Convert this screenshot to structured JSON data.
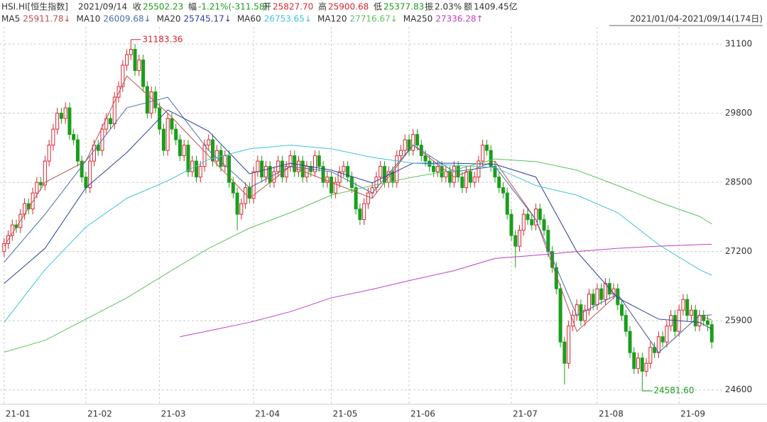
{
  "header": {
    "symbol": "HSI.HI[恒生指数]",
    "date": "2021/09/14",
    "items": [
      {
        "label": "收",
        "text": "25502.23",
        "color": "#1a9e1a"
      },
      {
        "label": "幅",
        "text": "-1.21%(-311.58)",
        "color": "#1a9e1a"
      },
      {
        "label": "开",
        "text": "25827.70",
        "color": "#d7262f"
      },
      {
        "label": "高",
        "text": "25900.68",
        "color": "#d7262f"
      },
      {
        "label": "低",
        "text": "25377.83",
        "color": "#1a9e1a"
      },
      {
        "label": "振",
        "text": "2.03%",
        "color": "#333333"
      },
      {
        "label": "额",
        "text": "1409.45亿",
        "color": "#333333"
      }
    ],
    "range": "2021/01/04-2021/09/14(174日)"
  },
  "chart_data": {
    "type": "candlestick",
    "up_color": "#d7262f",
    "down_color": "#1a9e1a",
    "grid": true,
    "ylim": [
      24330,
      31420
    ],
    "yticks": [
      24600,
      25900,
      27200,
      28500,
      29800,
      31100
    ],
    "xlim": [
      -1,
      174
    ],
    "xticks": [
      {
        "value": 0,
        "label": "21-01"
      },
      {
        "value": 20,
        "label": "21-02"
      },
      {
        "value": 38,
        "label": "21-03"
      },
      {
        "value": 61,
        "label": "21-04"
      },
      {
        "value": 80,
        "label": "21-05"
      },
      {
        "value": 99,
        "label": "21-06"
      },
      {
        "value": 124,
        "label": "21-07"
      },
      {
        "value": 145,
        "label": "21-08"
      },
      {
        "value": 165,
        "label": "21-09"
      }
    ],
    "open": [
      27200,
      27350,
      27500,
      27700,
      27650,
      27900,
      28100,
      28000,
      28300,
      28500,
      28450,
      28900,
      29200,
      29500,
      29800,
      29700,
      29900,
      29400,
      29300,
      28900,
      28600,
      28400,
      28900,
      29200,
      29100,
      29500,
      29700,
      29600,
      30100,
      30300,
      30700,
      30900,
      31000,
      30600,
      30800,
      30300,
      29800,
      30200,
      29900,
      29500,
      29100,
      29700,
      29500,
      29300,
      29000,
      29200,
      28700,
      28900,
      28600,
      28800,
      29200,
      29300,
      28900,
      29100,
      28800,
      29000,
      28500,
      28300,
      27900,
      28100,
      28400,
      28200,
      28700,
      28900,
      28600,
      28800,
      28500,
      28700,
      28900,
      28600,
      28800,
      29000,
      28700,
      28900,
      28600,
      28800,
      28700,
      29000,
      28800,
      28500,
      28600,
      28300,
      28500,
      28700,
      28800,
      28600,
      28400,
      28000,
      27800,
      28100,
      28300,
      28400,
      28600,
      28800,
      28500,
      28700,
      28500,
      29000,
      29100,
      29300,
      29100,
      29400,
      29200,
      29000,
      28900,
      28800,
      28700,
      28800,
      28600,
      28700,
      28500,
      28800,
      28600,
      28400,
      28700,
      28500,
      28600,
      28900,
      29200,
      29100,
      28800,
      28600,
      28400,
      28300,
      27900,
      27500,
      27300,
      27600,
      27900,
      27800,
      27700,
      28000,
      27800,
      27600,
      27200,
      26900,
      26500,
      25500,
      25100,
      25800,
      26000,
      26200,
      25900,
      26100,
      26400,
      26200,
      26500,
      26300,
      26600,
      26400,
      26500,
      26200,
      26000,
      25700,
      25300,
      25000,
      25200,
      24950,
      25100,
      25400,
      25300,
      25600,
      25500,
      25800,
      26000,
      25700,
      26100,
      26300,
      26000,
      26100,
      25800,
      26000,
      25900,
      25827.7
    ],
    "close": [
      27350,
      27500,
      27700,
      27650,
      27900,
      28100,
      28000,
      28300,
      28500,
      28450,
      28900,
      29200,
      29500,
      29800,
      29700,
      29900,
      29400,
      29300,
      28900,
      28600,
      28400,
      28900,
      29200,
      29100,
      29500,
      29700,
      29600,
      30100,
      30300,
      30700,
      30900,
      31000,
      30600,
      30800,
      30300,
      29800,
      30200,
      29900,
      29500,
      29100,
      29700,
      29500,
      29300,
      29000,
      29200,
      28700,
      28900,
      28600,
      28800,
      29200,
      29300,
      28900,
      29100,
      28800,
      29000,
      28500,
      28300,
      27900,
      28100,
      28400,
      28200,
      28700,
      28900,
      28600,
      28800,
      28500,
      28700,
      28900,
      28600,
      28800,
      29000,
      28700,
      28900,
      28600,
      28800,
      28700,
      29000,
      28800,
      28500,
      28600,
      28300,
      28500,
      28700,
      28800,
      28600,
      28400,
      28000,
      27800,
      28100,
      28300,
      28400,
      28600,
      28800,
      28500,
      28700,
      28500,
      29000,
      29100,
      29300,
      29100,
      29400,
      29200,
      29000,
      28900,
      28800,
      28700,
      28800,
      28600,
      28700,
      28500,
      28800,
      28600,
      28400,
      28700,
      28500,
      28600,
      28900,
      29200,
      29100,
      28800,
      28600,
      28400,
      28300,
      27900,
      27500,
      27300,
      27600,
      27900,
      27800,
      27700,
      28000,
      27800,
      27600,
      27200,
      26900,
      26500,
      25500,
      25100,
      25800,
      26000,
      26200,
      25900,
      26100,
      26400,
      26200,
      26500,
      26300,
      26600,
      26400,
      26500,
      26200,
      26000,
      25700,
      25300,
      25000,
      25200,
      24950,
      25100,
      25400,
      25300,
      25600,
      25500,
      25800,
      26000,
      25700,
      26100,
      26300,
      26000,
      26100,
      25800,
      26000,
      25900,
      25830,
      25502.23
    ],
    "high": [
      27450,
      27600,
      27800,
      27800,
      28000,
      28200,
      28200,
      28400,
      28600,
      28600,
      29000,
      29300,
      29600,
      29900,
      29900,
      30000,
      30000,
      29500,
      29400,
      29000,
      28700,
      29000,
      29300,
      29300,
      29600,
      29800,
      29800,
      30200,
      30400,
      30800,
      31000,
      31183.36,
      31100,
      30900,
      30900,
      30400,
      30300,
      30300,
      30000,
      29600,
      29800,
      29800,
      29600,
      29400,
      29300,
      29300,
      29000,
      29000,
      28900,
      29300,
      29400,
      29400,
      29200,
      29200,
      29100,
      29100,
      28600,
      28400,
      28200,
      28500,
      28500,
      28800,
      29000,
      29000,
      28900,
      28900,
      28800,
      29000,
      29000,
      28900,
      29100,
      29100,
      29000,
      29000,
      28900,
      28900,
      29100,
      29100,
      28900,
      28700,
      28700,
      28600,
      28800,
      28900,
      28900,
      28700,
      28500,
      28100,
      28200,
      28400,
      28500,
      28700,
      28900,
      28900,
      28800,
      28800,
      29100,
      29200,
      29400,
      29400,
      29500,
      29500,
      29300,
      29100,
      29000,
      28900,
      28900,
      28900,
      28800,
      28800,
      28900,
      28900,
      28700,
      28800,
      28800,
      28700,
      29000,
      29300,
      29300,
      29200,
      28900,
      28700,
      28500,
      28400,
      28000,
      27600,
      27700,
      28000,
      28000,
      27900,
      28100,
      28100,
      27900,
      27700,
      27300,
      27000,
      26600,
      25600,
      25900,
      26100,
      26300,
      26300,
      26200,
      26500,
      26500,
      26600,
      26600,
      26700,
      26700,
      26600,
      26600,
      26300,
      26100,
      25800,
      25400,
      25300,
      25300,
      25200,
      25500,
      25500,
      25700,
      25700,
      25900,
      26100,
      26100,
      26200,
      26400,
      26400,
      26200,
      26200,
      26100,
      26100,
      26000,
      25900.68
    ],
    "low": [
      27100,
      27250,
      27400,
      27550,
      27550,
      27800,
      27900,
      27900,
      28200,
      28350,
      28350,
      28800,
      29100,
      29400,
      29600,
      29600,
      29300,
      29200,
      28800,
      28500,
      28300,
      28300,
      28800,
      29000,
      29000,
      29400,
      29500,
      29500,
      30000,
      30200,
      30600,
      30800,
      30500,
      30500,
      30200,
      29700,
      29700,
      29800,
      29400,
      29000,
      29000,
      29400,
      29200,
      28900,
      28900,
      28600,
      28600,
      28500,
      28500,
      28700,
      29100,
      28800,
      28800,
      28700,
      28700,
      28400,
      28200,
      27600,
      27800,
      28000,
      28100,
      28100,
      28600,
      28500,
      28500,
      28400,
      28400,
      28600,
      28500,
      28500,
      28700,
      28600,
      28600,
      28500,
      28500,
      28600,
      28600,
      28700,
      28400,
      28400,
      28200,
      28200,
      28400,
      28600,
      28500,
      28300,
      27900,
      27700,
      27700,
      28000,
      28200,
      28300,
      28500,
      28400,
      28400,
      28400,
      28400,
      28900,
      29000,
      29000,
      29000,
      29100,
      28900,
      28800,
      28700,
      28600,
      28600,
      28500,
      28500,
      28400,
      28400,
      28500,
      28300,
      28300,
      28400,
      28400,
      28500,
      28800,
      29000,
      28700,
      28500,
      28300,
      28200,
      27800,
      27400,
      26900,
      27200,
      27500,
      27700,
      27600,
      27600,
      27700,
      27500,
      27100,
      26800,
      26400,
      25400,
      24700,
      25000,
      25700,
      25900,
      25800,
      25800,
      26000,
      26100,
      26100,
      26200,
      26200,
      26300,
      26300,
      26100,
      25900,
      25600,
      25200,
      24900,
      24900,
      24581.6,
      24850,
      25000,
      25200,
      25200,
      25400,
      25400,
      25700,
      25600,
      25600,
      26000,
      25900,
      25900,
      25700,
      25700,
      25800,
      25700,
      25377.83
    ],
    "annotations": [
      {
        "label": "31183.36",
        "x": 31,
        "y": 31183.36,
        "color": "#d7262f"
      },
      {
        "label": "24581.60",
        "x": 156,
        "y": 24581.6,
        "color": "#1a9e1a"
      }
    ],
    "series": [
      {
        "name": "MA5",
        "color": "#c0504d",
        "legend_value": "25911.78↓",
        "x": [
          0,
          10,
          20,
          30,
          40,
          50,
          60,
          70,
          80,
          90,
          100,
          110,
          120,
          130,
          140,
          150,
          160,
          170,
          173
        ],
        "values": [
          27300,
          28500,
          28900,
          30500,
          29800,
          29000,
          28200,
          28800,
          28500,
          28200,
          29200,
          28600,
          28900,
          27800,
          25700,
          26400,
          25300,
          26000,
          25911.78
        ]
      },
      {
        "name": "MA10",
        "color": "#4a6fa5",
        "legend_value": "26009.68↓",
        "x": [
          0,
          10,
          20,
          30,
          40,
          50,
          60,
          70,
          80,
          90,
          100,
          110,
          120,
          130,
          140,
          150,
          160,
          170,
          173
        ],
        "values": [
          27000,
          27900,
          28900,
          29900,
          30100,
          29100,
          28400,
          28800,
          28700,
          28300,
          29200,
          28700,
          28800,
          27800,
          26000,
          26400,
          25300,
          26000,
          26009.68
        ]
      },
      {
        "name": "MA20",
        "color": "#2a3f9e",
        "legend_value": "25745.17↓",
        "x": [
          0,
          10,
          20,
          30,
          40,
          50,
          60,
          70,
          80,
          90,
          100,
          110,
          120,
          130,
          140,
          150,
          160,
          170,
          173
        ],
        "values": [
          26600,
          27260,
          28400,
          29060,
          29860,
          29460,
          28660,
          28860,
          28730,
          28490,
          28860,
          28860,
          28840,
          28600,
          27200,
          26330,
          25930,
          25870,
          25745.17
        ]
      },
      {
        "name": "MA60",
        "color": "#3ec3d6",
        "legend_value": "26753.65↓",
        "x": [
          0,
          10,
          20,
          30,
          40,
          50,
          60,
          70,
          80,
          90,
          100,
          110,
          120,
          130,
          140,
          150,
          160,
          170,
          173
        ],
        "values": [
          25870,
          26860,
          27660,
          28200,
          28530,
          28930,
          29130,
          29200,
          29130,
          28970,
          28860,
          28820,
          28780,
          28440,
          28260,
          27930,
          27330,
          26860,
          26753.65
        ]
      },
      {
        "name": "MA120",
        "color": "#5cc25c",
        "legend_value": "27716.67↓",
        "x": [
          0,
          10,
          20,
          30,
          40,
          50,
          60,
          70,
          80,
          90,
          100,
          110,
          120,
          130,
          140,
          150,
          160,
          170,
          173
        ],
        "values": [
          25310,
          25530,
          25930,
          26330,
          26800,
          27260,
          27640,
          27930,
          28260,
          28440,
          28600,
          28730,
          28940,
          28890,
          28730,
          28440,
          28130,
          27860,
          27716.67
        ]
      },
      {
        "name": "MA250",
        "color": "#c23fc2",
        "legend_value": "27336.28↑",
        "x": [
          43,
          50,
          60,
          70,
          80,
          90,
          100,
          110,
          120,
          130,
          140,
          150,
          160,
          170,
          173
        ],
        "values": [
          25600,
          25710,
          25870,
          26070,
          26330,
          26490,
          26670,
          26840,
          27070,
          27130,
          27200,
          27260,
          27300,
          27330,
          27336.28
        ]
      }
    ]
  }
}
